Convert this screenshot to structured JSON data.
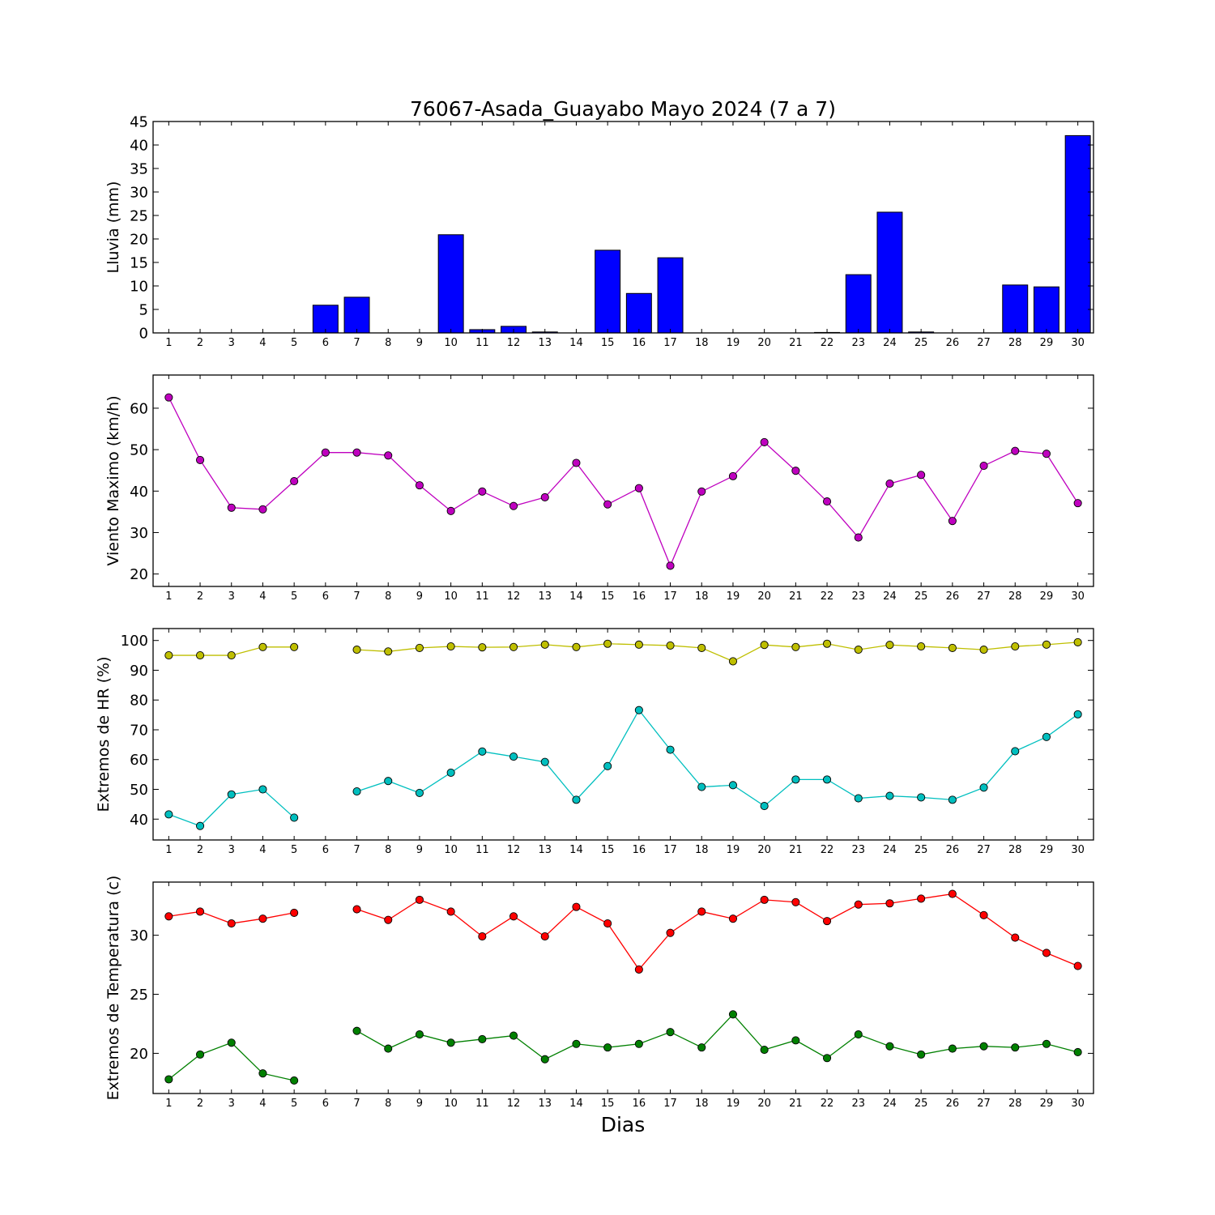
{
  "figure": {
    "title": "76067-Asada_Guayabo Mayo 2024  (7 a 7)",
    "xlabel": "Dias"
  },
  "colors": {
    "rain": "#0000ff",
    "wind": "#bf00bf",
    "hr_max": "#bfbf00",
    "hr_min": "#00bfbf",
    "temp_max": "#ff0000",
    "temp_min": "#008000"
  },
  "chart_data": [
    {
      "type": "bar",
      "ylabel": "Lluvia (mm)",
      "categories": [
        "1",
        "2",
        "3",
        "4",
        "5",
        "6",
        "7",
        "8",
        "9",
        "10",
        "11",
        "12",
        "13",
        "14",
        "15",
        "16",
        "17",
        "18",
        "19",
        "20",
        "21",
        "22",
        "23",
        "24",
        "25",
        "26",
        "27",
        "28",
        "29",
        "30"
      ],
      "values": [
        0,
        0,
        0,
        0,
        0,
        5.9,
        7.6,
        0,
        0,
        20.9,
        0.7,
        1.4,
        0.2,
        0,
        17.6,
        8.4,
        16.0,
        0,
        0,
        0,
        0,
        0.1,
        12.4,
        25.7,
        0.2,
        0,
        0,
        10.2,
        9.8,
        42.0
      ],
      "ylim": [
        0,
        45
      ],
      "yticks": [
        0,
        5,
        10,
        15,
        20,
        25,
        30,
        35,
        40,
        45
      ]
    },
    {
      "type": "line",
      "ylabel": "Viento Maximo (km/h)",
      "x": [
        1,
        2,
        3,
        4,
        5,
        6,
        7,
        8,
        9,
        10,
        11,
        12,
        13,
        14,
        15,
        16,
        17,
        18,
        19,
        20,
        21,
        22,
        23,
        24,
        25,
        26,
        27,
        28,
        29,
        30
      ],
      "series": [
        {
          "values": [
            62.6,
            47.5,
            36.0,
            35.6,
            42.4,
            49.3,
            49.3,
            48.6,
            41.4,
            35.2,
            39.9,
            36.4,
            38.5,
            46.8,
            36.8,
            40.7,
            22.0,
            39.9,
            43.6,
            51.8,
            44.9,
            37.5,
            28.8,
            41.8,
            43.9,
            32.8,
            46.1,
            49.7,
            49.0,
            37.1
          ]
        }
      ],
      "ylim": [
        17,
        68
      ],
      "yticks": [
        20,
        30,
        40,
        50,
        60
      ]
    },
    {
      "type": "line",
      "ylabel": "Extremos de HR (%)",
      "x": [
        1,
        2,
        3,
        4,
        5,
        6,
        7,
        8,
        9,
        10,
        11,
        12,
        13,
        14,
        15,
        16,
        17,
        18,
        19,
        20,
        21,
        22,
        23,
        24,
        25,
        26,
        27,
        28,
        29,
        30
      ],
      "series": [
        {
          "values": [
            95.0,
            95.0,
            95.0,
            97.8,
            97.8,
            null,
            96.9,
            96.3,
            97.5,
            98.0,
            97.7,
            97.8,
            98.6,
            97.8,
            98.9,
            98.6,
            98.3,
            97.5,
            93.0,
            98.5,
            97.8,
            98.9,
            96.9,
            98.5,
            98.0,
            97.5,
            96.9,
            98.0,
            98.6,
            99.4
          ]
        },
        {
          "values": [
            41.6,
            37.7,
            48.3,
            50.0,
            40.5,
            null,
            49.3,
            52.8,
            48.8,
            55.6,
            62.7,
            61.0,
            59.2,
            46.5,
            57.8,
            76.6,
            63.3,
            50.8,
            51.4,
            44.4,
            53.3,
            53.3,
            47.0,
            47.8,
            47.3,
            46.5,
            50.6,
            62.8,
            67.6,
            75.2
          ]
        }
      ],
      "ylim": [
        33,
        104
      ],
      "yticks": [
        40,
        50,
        60,
        70,
        80,
        90,
        100
      ]
    },
    {
      "type": "line",
      "ylabel": "Extremos de Temperatura (c)",
      "x": [
        1,
        2,
        3,
        4,
        5,
        6,
        7,
        8,
        9,
        10,
        11,
        12,
        13,
        14,
        15,
        16,
        17,
        18,
        19,
        20,
        21,
        22,
        23,
        24,
        25,
        26,
        27,
        28,
        29,
        30
      ],
      "series": [
        {
          "values": [
            31.6,
            32.0,
            31.0,
            31.4,
            31.9,
            null,
            32.2,
            31.3,
            33.0,
            32.0,
            29.9,
            31.6,
            29.9,
            32.4,
            31.0,
            27.1,
            30.2,
            32.0,
            31.4,
            33.0,
            32.8,
            31.2,
            32.6,
            32.7,
            33.1,
            33.5,
            31.7,
            29.8,
            28.5,
            27.4
          ]
        },
        {
          "values": [
            17.8,
            19.9,
            20.9,
            18.3,
            17.7,
            null,
            21.9,
            20.4,
            21.6,
            20.9,
            21.2,
            21.5,
            19.5,
            20.8,
            20.5,
            20.8,
            21.8,
            20.5,
            23.3,
            20.3,
            21.1,
            19.6,
            21.6,
            20.6,
            19.9,
            20.4,
            20.6,
            20.5,
            20.8,
            20.1
          ]
        }
      ],
      "ylim": [
        16.6,
        34.5
      ],
      "yticks": [
        20,
        25,
        30
      ]
    }
  ]
}
